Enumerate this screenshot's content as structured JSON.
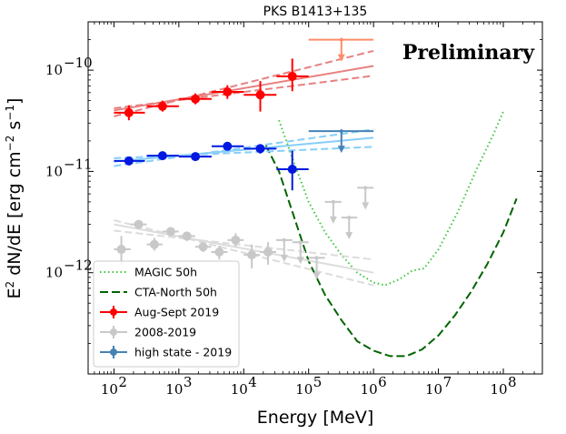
{
  "chart_data": {
    "type": "scatter",
    "title": "PKS B1413+135",
    "annotation": "Preliminary",
    "xlabel": "Energy [MeV]",
    "ylabel_parts": [
      "E",
      "2",
      " dN/dE [erg cm",
      "−2",
      " s",
      "−1",
      "]"
    ],
    "xscale": "log",
    "yscale": "log",
    "xlim": [
      40,
      400000000
    ],
    "ylim": [
      1e-13,
      3e-10
    ],
    "x_ticks": [
      {
        "value": 100,
        "base": "10",
        "exp": "2"
      },
      {
        "value": 1000,
        "base": "10",
        "exp": "3"
      },
      {
        "value": 10000,
        "base": "10",
        "exp": "4"
      },
      {
        "value": 100000,
        "base": "10",
        "exp": "5"
      },
      {
        "value": 1000000,
        "base": "10",
        "exp": "6"
      },
      {
        "value": 10000000,
        "base": "10",
        "exp": "7"
      },
      {
        "value": 100000000,
        "base": "10",
        "exp": "8"
      }
    ],
    "y_ticks": [
      {
        "value": 1e-12,
        "base": "10",
        "exp": "−12"
      },
      {
        "value": 1e-11,
        "base": "10",
        "exp": "−11"
      },
      {
        "value": 1e-10,
        "base": "10",
        "exp": "−10"
      }
    ],
    "legend": [
      {
        "label": "MAGIC 50h",
        "kind": "line",
        "color": "#3cc83c",
        "dash": "dotted"
      },
      {
        "label": "CTA-North 50h",
        "kind": "line",
        "color": "#006400",
        "dash": "dashed"
      },
      {
        "label": "Aug-Sept 2019",
        "kind": "point",
        "color": "#ff0000"
      },
      {
        "label": "2008-2019",
        "kind": "point",
        "color": "#c8c8c8"
      },
      {
        "label": "high state - 2019",
        "kind": "point",
        "color": "#4682b4"
      }
    ],
    "series": [
      {
        "name": "Aug-Sept 2019",
        "color": "#ff0000",
        "fitcolor": "#e88080",
        "points": [
          {
            "x": 170,
            "y": 3.8e-11,
            "xlo": 100,
            "xhi": 300,
            "ylo": 3.2e-11,
            "yhi": 4.5e-11
          },
          {
            "x": 560,
            "y": 4.4e-11,
            "xlo": 320,
            "xhi": 1000,
            "ylo": 3.9e-11,
            "yhi": 5e-11
          },
          {
            "x": 1800,
            "y": 5.2e-11,
            "xlo": 1000,
            "xhi": 3200,
            "ylo": 4.6e-11,
            "yhi": 5.9e-11
          },
          {
            "x": 5600,
            "y": 6.1e-11,
            "xlo": 3200,
            "xhi": 10000,
            "ylo": 5.2e-11,
            "yhi": 7.1e-11
          },
          {
            "x": 18000,
            "y": 5.7e-11,
            "xlo": 10000,
            "xhi": 32000,
            "ylo": 3.9e-11,
            "yhi": 7.8e-11
          },
          {
            "x": 56000,
            "y": 8.7e-11,
            "xlo": 32000,
            "xhi": 100000,
            "ylo": 6.2e-11,
            "yhi": 1.3e-10
          }
        ],
        "fit": {
          "x0": 100,
          "x1": 1000000,
          "y0": 4e-11,
          "y1": 1.1e-10,
          "lo0": 4.2e-11,
          "lo1": 8.8e-11,
          "hi0": 3.5e-11,
          "hi1": 1.55e-10
        },
        "upper_limits": []
      },
      {
        "name": "high state - 2019",
        "color": "#0018e0",
        "fitcolor": "#87cefa",
        "points": [
          {
            "x": 170,
            "y": 1.27e-11,
            "xlo": 100,
            "xhi": 300,
            "ylo": 1.15e-11,
            "yhi": 1.4e-11
          },
          {
            "x": 560,
            "y": 1.43e-11,
            "xlo": 320,
            "xhi": 1000,
            "ylo": 1.36e-11,
            "yhi": 1.5e-11
          },
          {
            "x": 1800,
            "y": 1.4e-11,
            "xlo": 1000,
            "xhi": 3200,
            "ylo": 1.33e-11,
            "yhi": 1.47e-11
          },
          {
            "x": 5600,
            "y": 1.77e-11,
            "xlo": 3200,
            "xhi": 10000,
            "ylo": 1.67e-11,
            "yhi": 1.87e-11
          },
          {
            "x": 18000,
            "y": 1.68e-11,
            "xlo": 10000,
            "xhi": 32000,
            "ylo": 1.5e-11,
            "yhi": 1.86e-11
          },
          {
            "x": 56000,
            "y": 1.05e-11,
            "xlo": 32000,
            "xhi": 100000,
            "ylo": 6.5e-12,
            "yhi": 1.6e-11
          }
        ],
        "fit": {
          "x0": 100,
          "x1": 1000000,
          "y0": 1.25e-11,
          "y1": 2.15e-11,
          "lo0": 1.35e-11,
          "lo1": 1.75e-11,
          "hi0": 1.13e-11,
          "hi1": 2.6e-11
        },
        "upper_limits": [
          {
            "x": 320000,
            "y": 2.5e-11,
            "xlo": 100000,
            "xhi": 1000000,
            "color": "#4682b4"
          }
        ]
      },
      {
        "name": "2008-2019",
        "color": "#c8c8c8",
        "fitcolor": "#dcdcdc",
        "points": [
          {
            "x": 130,
            "y": 1.7e-12,
            "xlo": 100,
            "xhi": 180,
            "ylo": 1.2e-12,
            "yhi": 2.3e-12
          },
          {
            "x": 240,
            "y": 3e-12,
            "xlo": 180,
            "xhi": 320,
            "ylo": 2.7e-12,
            "yhi": 3.3e-12
          },
          {
            "x": 420,
            "y": 1.9e-12,
            "xlo": 320,
            "xhi": 560,
            "ylo": 1.65e-12,
            "yhi": 2.2e-12
          },
          {
            "x": 750,
            "y": 2.55e-12,
            "xlo": 560,
            "xhi": 1000,
            "ylo": 2.3e-12,
            "yhi": 2.8e-12
          },
          {
            "x": 1330,
            "y": 2.3e-12,
            "xlo": 1000,
            "xhi": 1780,
            "ylo": 2.05e-12,
            "yhi": 2.55e-12
          },
          {
            "x": 2370,
            "y": 1.8e-12,
            "xlo": 1780,
            "xhi": 3160,
            "ylo": 1.6e-12,
            "yhi": 2e-12
          },
          {
            "x": 4200,
            "y": 1.6e-12,
            "xlo": 3160,
            "xhi": 5620,
            "ylo": 1.35e-12,
            "yhi": 1.85e-12
          },
          {
            "x": 7500,
            "y": 2.1e-12,
            "xlo": 5620,
            "xhi": 10000,
            "ylo": 1.8e-12,
            "yhi": 2.45e-12
          },
          {
            "x": 13300,
            "y": 1.5e-12,
            "xlo": 10000,
            "xhi": 17800,
            "ylo": 1.1e-12,
            "yhi": 1.9e-12
          },
          {
            "x": 23700,
            "y": 1.6e-12,
            "xlo": 17800,
            "xhi": 31600,
            "ylo": 1.2e-12,
            "yhi": 2e-12
          }
        ],
        "fit": {
          "x0": 100,
          "x1": 1000000,
          "y0": 3e-12,
          "y1": 1e-12,
          "lo0": 2.6e-12,
          "lo1": 1.35e-12,
          "hi0": 3.3e-12,
          "hi1": 7.5e-13
        },
        "upper_limits": [
          {
            "x": 42000,
            "y": 2.1e-12,
            "xlo": 31600,
            "xhi": 56200
          },
          {
            "x": 75000,
            "y": 2e-12,
            "xlo": 56200,
            "xhi": 100000
          },
          {
            "x": 133000,
            "y": 1.4e-12,
            "xlo": 100000,
            "xhi": 178000
          },
          {
            "x": 240000,
            "y": 5e-12,
            "xlo": 178000,
            "xhi": 320000
          },
          {
            "x": 420000,
            "y": 3.5e-12,
            "xlo": 320000,
            "xhi": 560000
          },
          {
            "x": 750000,
            "y": 6.9e-12,
            "xlo": 560000,
            "xhi": 1000000
          }
        ]
      }
    ],
    "extra_upper_limits": [
      {
        "x": 320000,
        "y": 2e-10,
        "xlo": 100000,
        "xhi": 1000000,
        "color": "#ff8c69"
      }
    ],
    "sensitivity_curves": [
      {
        "name": "MAGIC 50h",
        "color": "#3cc83c",
        "dash": "dotted",
        "x": [
          35000,
          60000,
          100000,
          180000,
          320000,
          560000,
          1000000,
          1500000,
          2500000,
          4000000,
          6000000,
          10000000,
          20000000,
          40000000,
          70000000,
          100000000
        ],
        "y": [
          3.2e-11,
          1.2e-11,
          5e-12,
          2.5e-12,
          1.5e-12,
          1e-12,
          8e-13,
          7.5e-13,
          8.6e-13,
          1.05e-12,
          1.1e-12,
          1.7e-12,
          4e-12,
          1.1e-11,
          2.3e-11,
          3.9e-11
        ]
      },
      {
        "name": "CTA-North 50h",
        "color": "#006400",
        "dash": "dashed",
        "x": [
          22000,
          35000,
          60000,
          100000,
          180000,
          320000,
          560000,
          1000000,
          1800000,
          3200000,
          5600000,
          10000000,
          18000000,
          32000000,
          56000000,
          100000000,
          160000000
        ],
        "y": [
          1.8e-11,
          1e-11,
          3.5e-12,
          1.3e-12,
          6e-13,
          3.4e-13,
          2.1e-13,
          1.7e-13,
          1.5e-13,
          1.5e-13,
          1.75e-13,
          2.4e-13,
          3.8e-13,
          6.5e-13,
          1.2e-12,
          2.5e-12,
          5.4e-12
        ]
      }
    ]
  }
}
